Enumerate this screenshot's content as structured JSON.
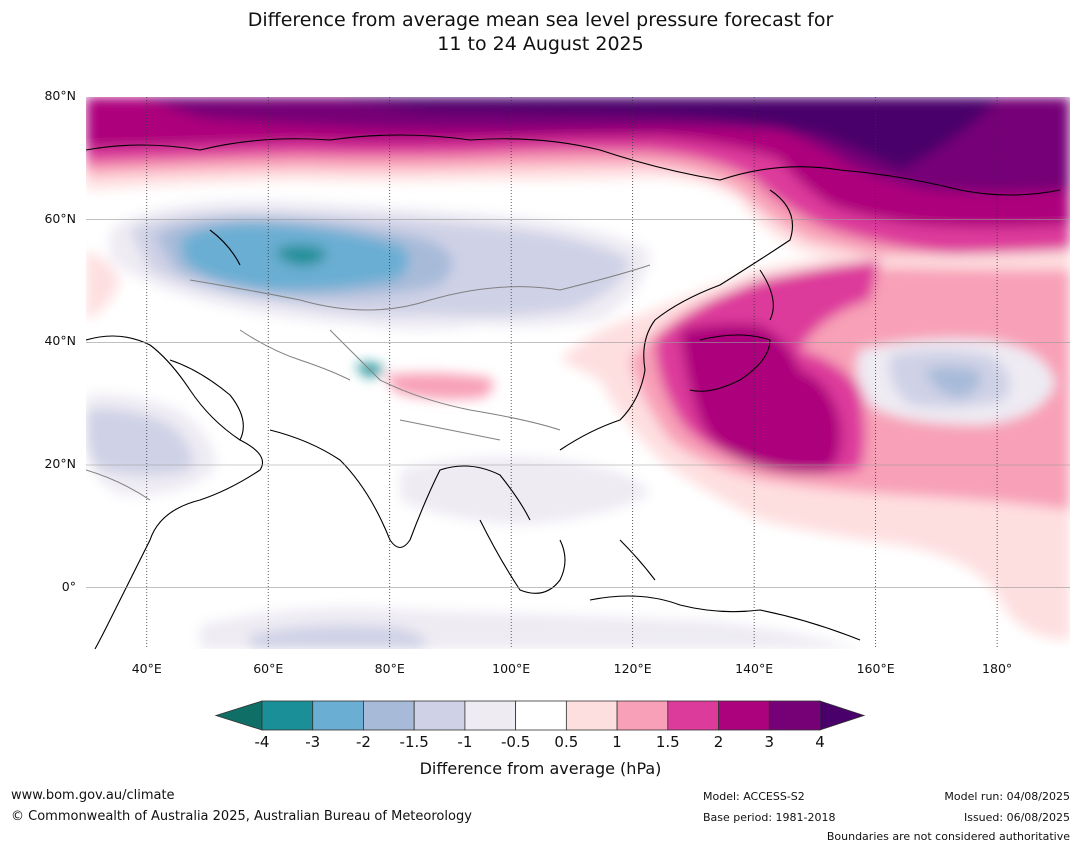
{
  "title": {
    "line1": "Difference from average mean sea level pressure forecast for",
    "line2": "11 to 24 August 2025"
  },
  "map": {
    "lat_labels": [
      "80°N",
      "60°N",
      "40°N",
      "20°N",
      "0°"
    ],
    "lon_labels": [
      "40°E",
      "60°E",
      "80°E",
      "100°E",
      "120°E",
      "140°E",
      "160°E",
      "180°"
    ],
    "lat_range": [
      -10,
      80
    ],
    "lon_range": [
      30,
      192
    ]
  },
  "colorbar": {
    "ticks": [
      "-4",
      "-3",
      "-2",
      "-1.5",
      "-1",
      "-0.5",
      "0.5",
      "1",
      "1.5",
      "2",
      "3",
      "4"
    ],
    "colors": [
      "#0f6e66",
      "#1b8f97",
      "#6aaed3",
      "#a7bbd9",
      "#cfd1e6",
      "#eeebf3",
      "#ffffff",
      "#fedfe0",
      "#f8a0b7",
      "#dd3b9b",
      "#ad027d",
      "#760177",
      "#4a006a"
    ],
    "label": "Difference from average (hPa)"
  },
  "footer": {
    "website": "www.bom.gov.au/climate",
    "copyright": "© Commonwealth of Australia 2025, Australian Bureau of Meteorology",
    "model": "Model: ACCESS-S2",
    "base_period": "Base period: 1981-2018",
    "model_run": "Model run: 04/08/2025",
    "issued": "Issued: 06/08/2025",
    "disclaimer": "Boundaries are not considered authoritative"
  }
}
